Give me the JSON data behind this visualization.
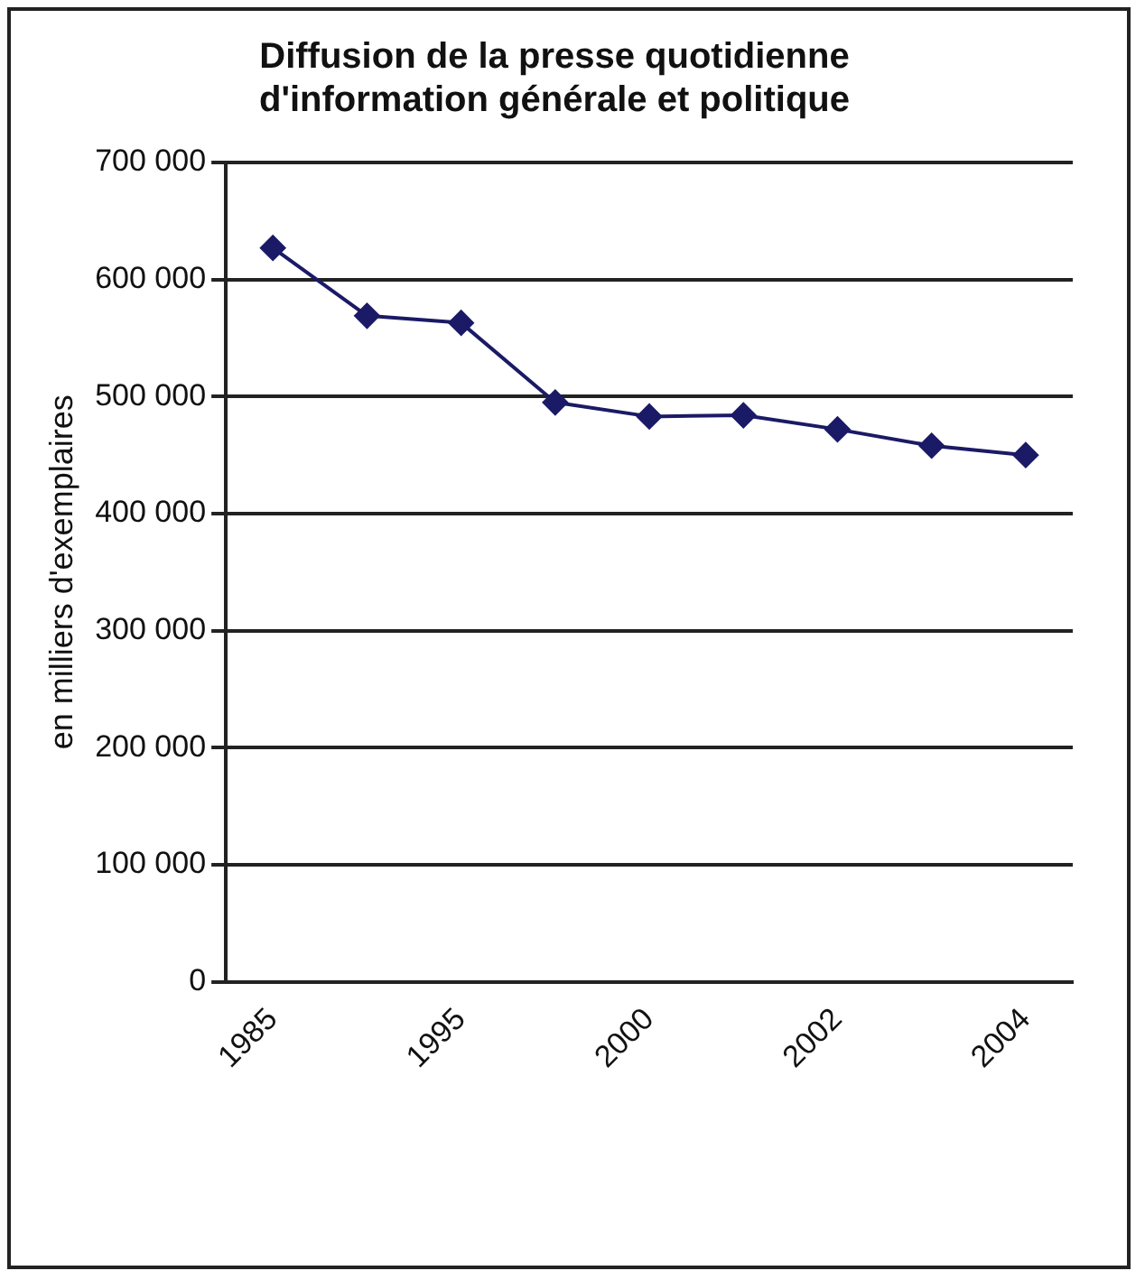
{
  "chart_data": {
    "type": "line",
    "title": "Diffusion de la presse quotidienne\nd'information générale et politique",
    "ylabel": "en milliers d'exemplaires",
    "categories": [
      "1985",
      null,
      "1995",
      null,
      "2000",
      null,
      "2002",
      null,
      "2004"
    ],
    "series": [
      {
        "color": "#1a1a66",
        "values": [
          627000,
          569000,
          563000,
          495000,
          483000,
          484000,
          472000,
          458000,
          450000
        ]
      }
    ],
    "ylim": [
      0,
      700000
    ],
    "yticks": [
      {
        "value": 0,
        "label": "0"
      },
      {
        "value": 100000,
        "label": "100 000"
      },
      {
        "value": 200000,
        "label": "200 000"
      },
      {
        "value": 300000,
        "label": "300 000"
      },
      {
        "value": 400000,
        "label": "400 000"
      },
      {
        "value": 500000,
        "label": "500 000"
      },
      {
        "value": 600000,
        "label": "600 000"
      },
      {
        "value": 700000,
        "label": "700 000"
      }
    ],
    "grid": "y",
    "marker": "diamond",
    "line_style": "solid"
  }
}
